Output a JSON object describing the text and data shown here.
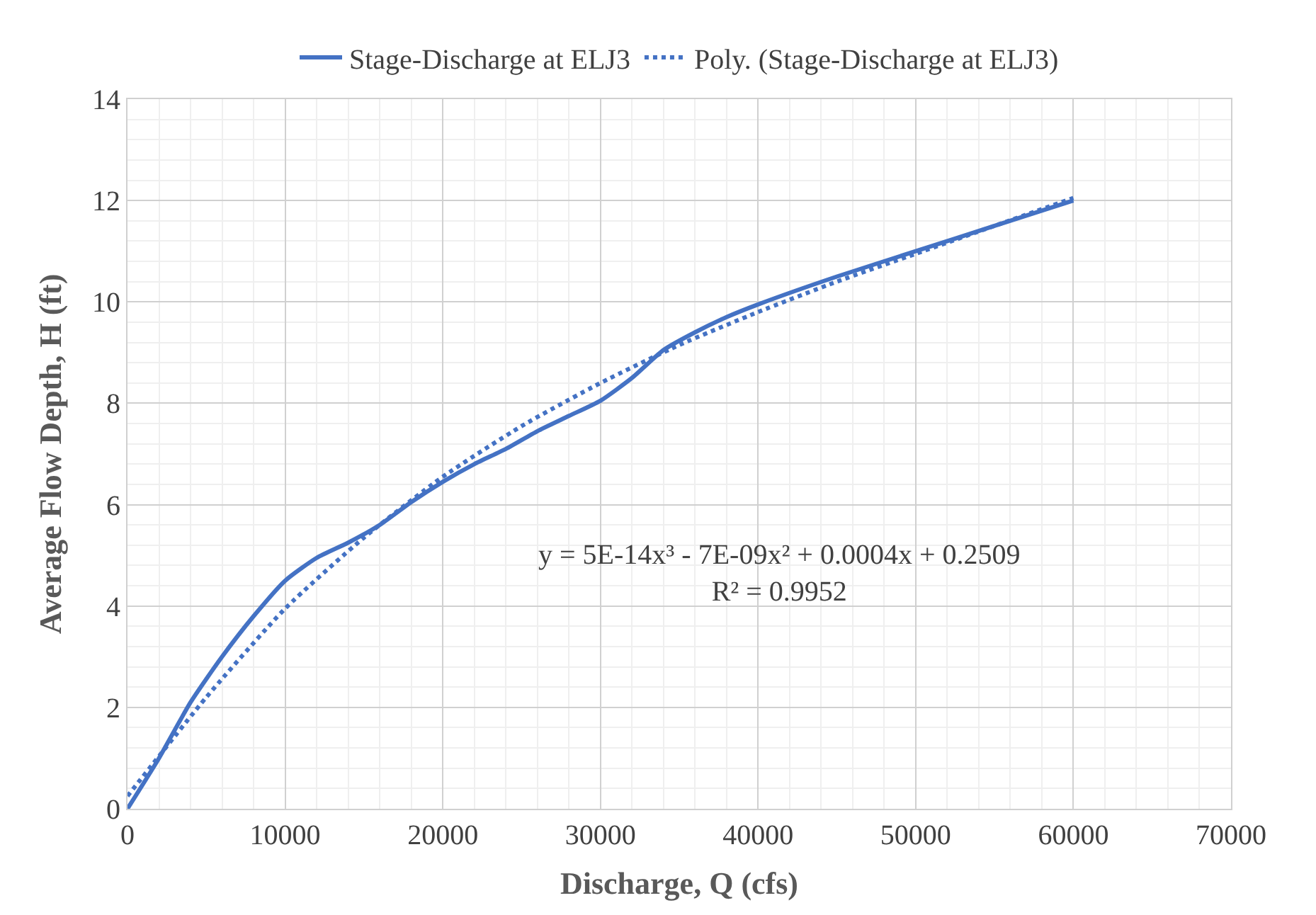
{
  "chart_data": {
    "type": "line",
    "xlabel": "Discharge, Q (cfs)",
    "ylabel": "Average Flow Depth, H (ft)",
    "xlim": [
      0,
      70000
    ],
    "xticks": [
      0,
      10000,
      20000,
      30000,
      40000,
      50000,
      60000,
      70000
    ],
    "ylim": [
      0,
      14
    ],
    "yticks": [
      0,
      2,
      4,
      6,
      8,
      10,
      12,
      14
    ],
    "grid": true,
    "legend": "top",
    "series": [
      {
        "name": "Stage-Discharge at ELJ3",
        "color": "#4472c4",
        "line_style": "solid",
        "x": [
          0,
          2000,
          4000,
          6000,
          8000,
          10000,
          12000,
          14000,
          16000,
          18000,
          20000,
          22000,
          24000,
          26000,
          28000,
          30000,
          32000,
          34000,
          36000,
          38000,
          40000,
          45000,
          50000,
          55000,
          60000
        ],
        "values": [
          0,
          1.0,
          2.1,
          3.0,
          3.8,
          4.5,
          4.95,
          5.25,
          5.6,
          6.05,
          6.45,
          6.8,
          7.1,
          7.45,
          7.75,
          8.05,
          8.5,
          9.05,
          9.4,
          9.7,
          9.95,
          10.5,
          11.0,
          11.5,
          12.0
        ]
      },
      {
        "name": "Poly. (Stage-Discharge at ELJ3)",
        "color": "#4472c4",
        "line_style": "dotted",
        "x": [
          0,
          5000,
          10000,
          15000,
          20000,
          25000,
          30000,
          35000,
          40000,
          45000,
          50000,
          55000,
          60000
        ],
        "values": [
          0.25,
          2.2,
          3.95,
          5.35,
          6.55,
          7.55,
          8.4,
          9.15,
          9.8,
          10.4,
          10.95,
          11.5,
          12.05
        ]
      }
    ],
    "annotations": [
      "y = 5E-14x³ - 7E-09x² + 0.0004x + 0.2509\nR² = 0.9952"
    ]
  }
}
